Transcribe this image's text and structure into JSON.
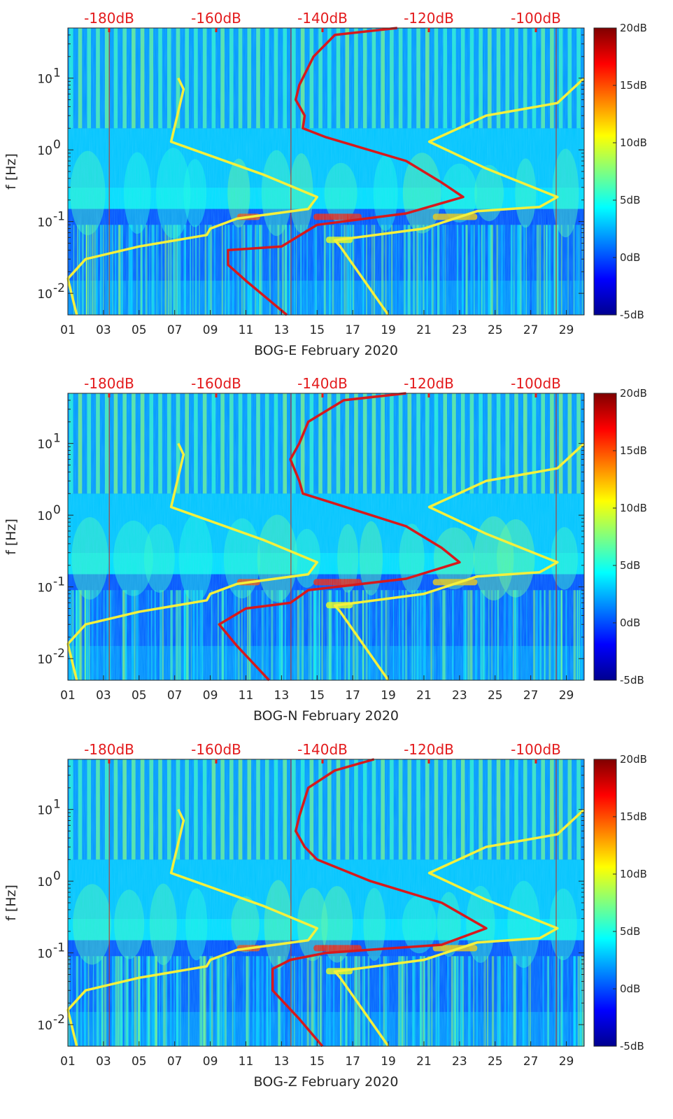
{
  "chart_data": [
    {
      "type": "heatmap",
      "station": "BOG-E",
      "xlabel": "BOG-E February 2020",
      "ylabel": "f [Hz]",
      "x_tick_labels": [
        "01",
        "03",
        "05",
        "07",
        "09",
        "11",
        "13",
        "15",
        "17",
        "19",
        "21",
        "23",
        "25",
        "27",
        "29"
      ],
      "y_ticks": [
        {
          "label": "10",
          "exp": "-2"
        },
        {
          "label": "10",
          "exp": "-1"
        },
        {
          "label": "10",
          "exp": "0"
        },
        {
          "label": "10",
          "exp": "1"
        }
      ],
      "top_axis_labels": [
        "-180dB",
        "-160dB",
        "-140dB",
        "-120dB",
        "-100dB"
      ],
      "colorbar_labels": [
        "20dB",
        "15dB",
        "10dB",
        "5dB",
        "0dB",
        "-5dB"
      ],
      "xlim": [
        1,
        30
      ],
      "ylim_hz": [
        0.005,
        50
      ],
      "clim_db": [
        -5,
        20
      ],
      "low_noise_model": {
        "name": "low noise model (yellow)",
        "points": [
          [
            7.2,
            10
          ],
          [
            7.5,
            7
          ],
          [
            6.8,
            1.3
          ],
          [
            12,
            0.45
          ],
          [
            15,
            0.22
          ],
          [
            14.5,
            0.15
          ],
          [
            10.5,
            0.11
          ],
          [
            9,
            0.08
          ],
          [
            8.8,
            0.065
          ],
          [
            5,
            0.045
          ],
          [
            2,
            0.03
          ],
          [
            1,
            0.016
          ],
          [
            1.5,
            0.005
          ]
        ]
      },
      "high_noise_model": {
        "name": "high noise model (yellow)",
        "points": [
          [
            30,
            10
          ],
          [
            28.5,
            4.5
          ],
          [
            24.5,
            3
          ],
          [
            21.3,
            1.3
          ],
          [
            24.5,
            0.55
          ],
          [
            28.5,
            0.22
          ],
          [
            27.5,
            0.16
          ],
          [
            24,
            0.14
          ],
          [
            21,
            0.08
          ],
          [
            16,
            0.055
          ],
          [
            16.3,
            0.045
          ],
          [
            19,
            0.005
          ]
        ]
      },
      "median_psd": {
        "name": "station median PSD (red)",
        "points": [
          [
            19.5,
            50
          ],
          [
            16,
            40
          ],
          [
            14.8,
            20
          ],
          [
            14,
            8
          ],
          [
            13.8,
            5
          ],
          [
            14.3,
            3
          ],
          [
            14.2,
            2
          ],
          [
            15.5,
            1.5
          ],
          [
            20,
            0.7
          ],
          [
            22,
            0.35
          ],
          [
            23.2,
            0.22
          ],
          [
            20,
            0.13
          ],
          [
            15,
            0.09
          ],
          [
            13,
            0.045
          ],
          [
            10,
            0.04
          ],
          [
            10,
            0.025
          ],
          [
            11,
            0.015
          ],
          [
            13.3,
            0.005
          ]
        ]
      }
    },
    {
      "type": "heatmap",
      "station": "BOG-N",
      "xlabel": "BOG-N February 2020",
      "ylabel": "f [Hz]",
      "x_tick_labels": [
        "01",
        "03",
        "05",
        "07",
        "09",
        "11",
        "13",
        "15",
        "17",
        "19",
        "21",
        "23",
        "25",
        "27",
        "29"
      ],
      "y_ticks": [
        {
          "label": "10",
          "exp": "-2"
        },
        {
          "label": "10",
          "exp": "-1"
        },
        {
          "label": "10",
          "exp": "0"
        },
        {
          "label": "10",
          "exp": "1"
        }
      ],
      "top_axis_labels": [
        "-180dB",
        "-160dB",
        "-140dB",
        "-120dB",
        "-100dB"
      ],
      "colorbar_labels": [
        "20dB",
        "15dB",
        "10dB",
        "5dB",
        "0dB",
        "-5dB"
      ],
      "xlim": [
        1,
        30
      ],
      "ylim_hz": [
        0.005,
        50
      ],
      "clim_db": [
        -5,
        20
      ],
      "low_noise_model": {
        "name": "low noise model (yellow)",
        "points": [
          [
            7.2,
            10
          ],
          [
            7.5,
            7
          ],
          [
            6.8,
            1.3
          ],
          [
            12,
            0.45
          ],
          [
            15,
            0.22
          ],
          [
            14.5,
            0.15
          ],
          [
            10.5,
            0.11
          ],
          [
            9,
            0.08
          ],
          [
            8.8,
            0.065
          ],
          [
            5,
            0.045
          ],
          [
            2,
            0.03
          ],
          [
            1,
            0.016
          ],
          [
            1.5,
            0.005
          ]
        ]
      },
      "high_noise_model": {
        "name": "high noise model (yellow)",
        "points": [
          [
            30,
            10
          ],
          [
            28.5,
            4.5
          ],
          [
            24.5,
            3
          ],
          [
            21.3,
            1.3
          ],
          [
            24.5,
            0.55
          ],
          [
            28.5,
            0.22
          ],
          [
            27.5,
            0.16
          ],
          [
            24,
            0.14
          ],
          [
            21,
            0.08
          ],
          [
            16,
            0.055
          ],
          [
            16.3,
            0.045
          ],
          [
            19,
            0.005
          ]
        ]
      },
      "median_psd": {
        "name": "station median PSD (red)",
        "points": [
          [
            20,
            50
          ],
          [
            16.5,
            40
          ],
          [
            14.5,
            20
          ],
          [
            14,
            10
          ],
          [
            13.5,
            6
          ],
          [
            14,
            3
          ],
          [
            14.2,
            2
          ],
          [
            15.8,
            1.5
          ],
          [
            20,
            0.7
          ],
          [
            22,
            0.35
          ],
          [
            23,
            0.22
          ],
          [
            20,
            0.13
          ],
          [
            14.5,
            0.09
          ],
          [
            13.5,
            0.06
          ],
          [
            11,
            0.05
          ],
          [
            9.5,
            0.03
          ],
          [
            10.5,
            0.015
          ],
          [
            12.3,
            0.005
          ]
        ]
      }
    },
    {
      "type": "heatmap",
      "station": "BOG-Z",
      "xlabel": "BOG-Z February 2020",
      "ylabel": "f [Hz]",
      "x_tick_labels": [
        "01",
        "03",
        "05",
        "07",
        "09",
        "11",
        "13",
        "15",
        "17",
        "19",
        "21",
        "23",
        "25",
        "27",
        "29"
      ],
      "y_ticks": [
        {
          "label": "10",
          "exp": "-2"
        },
        {
          "label": "10",
          "exp": "-1"
        },
        {
          "label": "10",
          "exp": "0"
        },
        {
          "label": "10",
          "exp": "1"
        }
      ],
      "top_axis_labels": [
        "-180dB",
        "-160dB",
        "-140dB",
        "-120dB",
        "-100dB"
      ],
      "colorbar_labels": [
        "20dB",
        "15dB",
        "10dB",
        "5dB",
        "0dB",
        "-5dB"
      ],
      "xlim": [
        1,
        30
      ],
      "ylim_hz": [
        0.005,
        50
      ],
      "clim_db": [
        -5,
        20
      ],
      "low_noise_model": {
        "name": "low noise model (yellow)",
        "points": [
          [
            7.2,
            10
          ],
          [
            7.5,
            7
          ],
          [
            6.8,
            1.3
          ],
          [
            12,
            0.45
          ],
          [
            15,
            0.22
          ],
          [
            14.5,
            0.15
          ],
          [
            10.5,
            0.11
          ],
          [
            9,
            0.08
          ],
          [
            8.8,
            0.065
          ],
          [
            5,
            0.045
          ],
          [
            2,
            0.03
          ],
          [
            1,
            0.016
          ],
          [
            1.5,
            0.005
          ]
        ]
      },
      "high_noise_model": {
        "name": "high noise model (yellow)",
        "points": [
          [
            30,
            10
          ],
          [
            28.5,
            4.5
          ],
          [
            24.5,
            3
          ],
          [
            21.3,
            1.3
          ],
          [
            24.5,
            0.55
          ],
          [
            28.5,
            0.22
          ],
          [
            27.5,
            0.16
          ],
          [
            24,
            0.14
          ],
          [
            21,
            0.08
          ],
          [
            16,
            0.055
          ],
          [
            16.3,
            0.045
          ],
          [
            19,
            0.005
          ]
        ]
      },
      "median_psd": {
        "name": "station median PSD (red)",
        "points": [
          [
            18.2,
            50
          ],
          [
            16,
            35
          ],
          [
            14.5,
            20
          ],
          [
            14,
            8
          ],
          [
            13.8,
            5
          ],
          [
            14.3,
            3
          ],
          [
            15,
            2
          ],
          [
            18,
            1
          ],
          [
            22,
            0.5
          ],
          [
            24.5,
            0.22
          ],
          [
            22,
            0.13
          ],
          [
            15.5,
            0.1
          ],
          [
            13.5,
            0.08
          ],
          [
            12.5,
            0.06
          ],
          [
            12.5,
            0.03
          ],
          [
            14,
            0.012
          ],
          [
            15.3,
            0.005
          ]
        ]
      }
    }
  ],
  "colors": {
    "top_axis": "#e31a1c",
    "noise_models": "#f5f03c",
    "median_psd": "#d7191c"
  }
}
